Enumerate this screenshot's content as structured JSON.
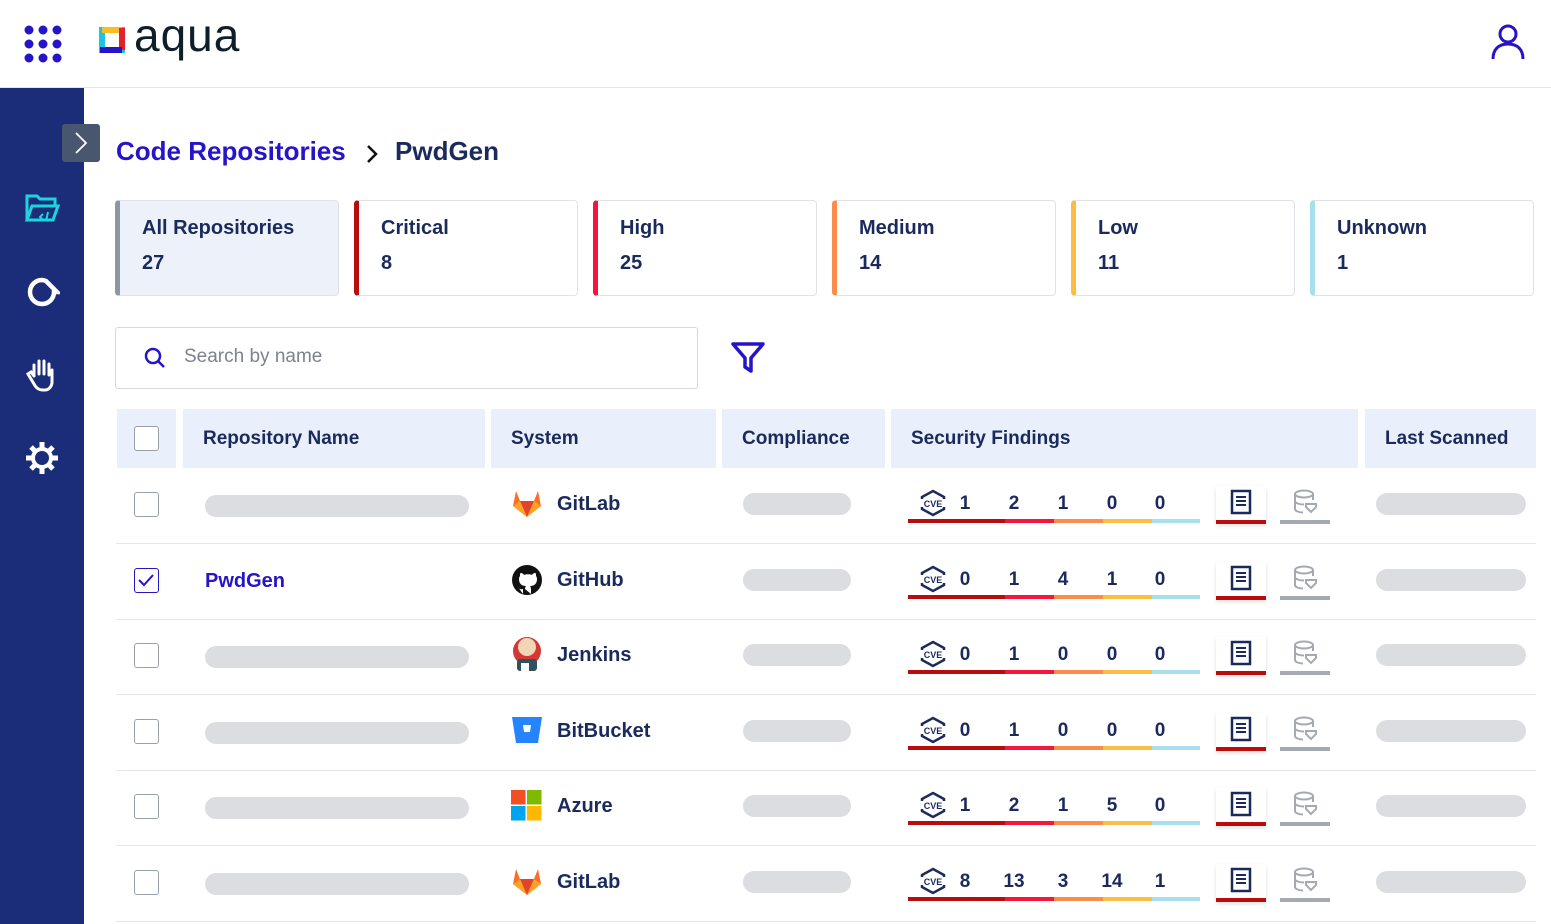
{
  "header": {
    "logo_text": "aqua",
    "apps_icon": "grid-icon",
    "user_icon": "user-icon"
  },
  "sidebar": {
    "items": [
      {
        "icon": "folder-code-icon",
        "active": true
      },
      {
        "icon": "aqua-drop-icon"
      },
      {
        "icon": "hand-icon"
      },
      {
        "icon": "gear-icon"
      }
    ]
  },
  "breadcrumb": {
    "parent": "Code Repositories",
    "current": "PwdGen"
  },
  "cards": [
    {
      "label": "All Repositories",
      "count": "27",
      "color": "#8e96a4",
      "selected": true
    },
    {
      "label": "Critical",
      "count": "8",
      "color": "#b80d0d"
    },
    {
      "label": "High",
      "count": "25",
      "color": "#f5153f"
    },
    {
      "label": "Medium",
      "count": "14",
      "color": "#fb8c4c"
    },
    {
      "label": "Low",
      "count": "11",
      "color": "#fbbd44"
    },
    {
      "label": "Unknown",
      "count": "1",
      "color": "#a8dfec"
    }
  ],
  "search": {
    "placeholder": "Search by name"
  },
  "table": {
    "headers": [
      "Repository Name",
      "System",
      "Compliance",
      "Security Findings",
      "Last Scanned"
    ],
    "rows": [
      {
        "name": "",
        "checked": false,
        "system": "GitLab",
        "findings": [
          "1",
          "2",
          "1",
          "0",
          "0"
        ]
      },
      {
        "name": "PwdGen",
        "checked": true,
        "system": "GitHub",
        "findings": [
          "0",
          "1",
          "4",
          "1",
          "0"
        ]
      },
      {
        "name": "",
        "checked": false,
        "system": "Jenkins",
        "findings": [
          "0",
          "1",
          "0",
          "0",
          "0"
        ]
      },
      {
        "name": "",
        "checked": false,
        "system": "BitBucket",
        "findings": [
          "0",
          "1",
          "0",
          "0",
          "0"
        ]
      },
      {
        "name": "",
        "checked": false,
        "system": "Azure",
        "findings": [
          "1",
          "2",
          "1",
          "5",
          "0"
        ]
      },
      {
        "name": "",
        "checked": false,
        "system": "GitLab",
        "findings": [
          "8",
          "13",
          "3",
          "14",
          "1"
        ]
      }
    ]
  },
  "colors": {
    "accent": "#2614c8",
    "sidebar": "#1b2d78",
    "severity": [
      "#b80d0d",
      "#f5153f",
      "#fb8c4c",
      "#fbbd44",
      "#a8dfec"
    ]
  }
}
